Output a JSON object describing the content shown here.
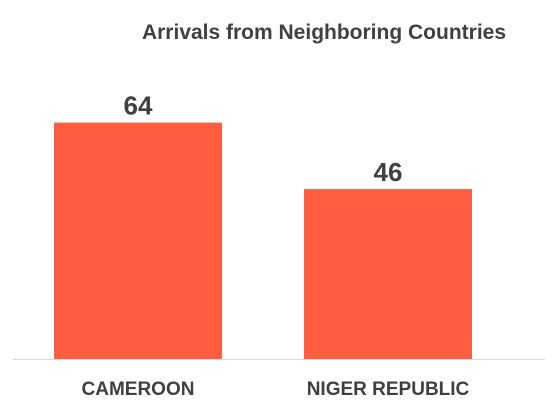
{
  "chart_data": {
    "type": "bar",
    "title": "Arrivals from Neighboring Countries",
    "xlabel": "",
    "ylabel": "",
    "categories": [
      "CAMEROON",
      "NIGER REPUBLIC"
    ],
    "values": [
      64,
      46
    ],
    "data_labels": [
      "64",
      "46"
    ],
    "ylim": [
      0,
      75
    ],
    "grid": false,
    "legend": "none",
    "colors": {
      "bar": "#FF5C40",
      "text": "#404040",
      "axis": "#D9D9D9"
    }
  }
}
